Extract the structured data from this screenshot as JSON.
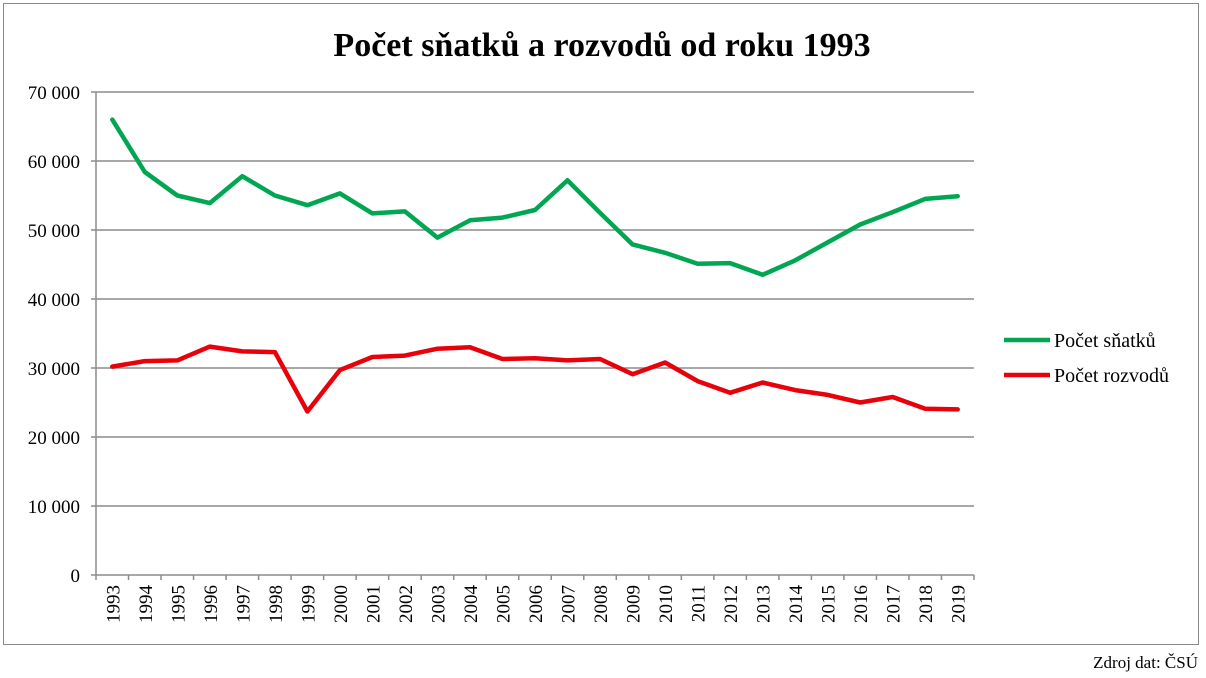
{
  "chart_data": {
    "type": "line",
    "title": "Počet sňatků a rozvodů od roku 1993",
    "xlabel": "",
    "ylabel": "",
    "categories": [
      "1993",
      "1994",
      "1995",
      "1996",
      "1997",
      "1998",
      "1999",
      "2000",
      "2001",
      "2002",
      "2003",
      "2004",
      "2005",
      "2006",
      "2007",
      "2008",
      "2009",
      "2010",
      "2011",
      "2012",
      "2013",
      "2014",
      "2015",
      "2016",
      "2017",
      "2018",
      "2019"
    ],
    "ylim": [
      0,
      70000
    ],
    "yticks": [
      0,
      10000,
      20000,
      30000,
      40000,
      50000,
      60000,
      70000
    ],
    "ytick_labels": [
      "0",
      "10 000",
      "20 000",
      "30 000",
      "40 000",
      "50 000",
      "60 000",
      "70 000"
    ],
    "grid": true,
    "legend_position": "right",
    "series": [
      {
        "name": "Počet sňatků",
        "color": "#00a651",
        "values": [
          66000,
          58400,
          55000,
          53900,
          57800,
          55000,
          53600,
          55300,
          52400,
          52700,
          48900,
          51400,
          51800,
          52900,
          57200,
          52500,
          47900,
          46700,
          45100,
          45200,
          43500,
          45600,
          48200,
          50800,
          52600,
          54500,
          54900
        ]
      },
      {
        "name": "Počet rozvodů",
        "color": "#e8000b",
        "values": [
          30200,
          31000,
          31100,
          33100,
          32400,
          32300,
          23700,
          29700,
          31600,
          31800,
          32800,
          33000,
          31300,
          31400,
          31100,
          31300,
          29100,
          30800,
          28100,
          26400,
          27900,
          26800,
          26100,
          25000,
          25800,
          24100,
          24000
        ]
      }
    ]
  },
  "source_note": "Zdroj dat: ČSÚ"
}
